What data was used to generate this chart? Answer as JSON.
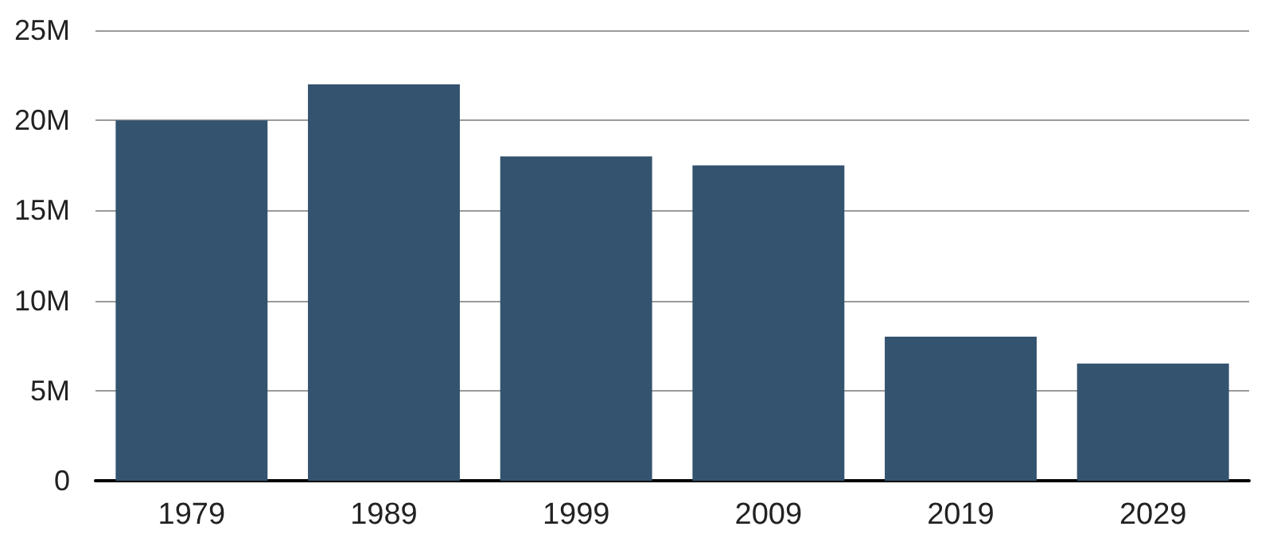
{
  "chart_data": {
    "type": "bar",
    "categories": [
      "1979",
      "1989",
      "1999",
      "2009",
      "2019",
      "2029"
    ],
    "values": [
      20000000,
      22000000,
      18000000,
      17500000,
      8000000,
      6500000
    ],
    "color": "#34536f",
    "ylim": [
      0,
      25000000
    ],
    "yticks": [
      {
        "value": 0,
        "label": "0"
      },
      {
        "value": 5000000,
        "label": "5M"
      },
      {
        "value": 10000000,
        "label": "10M"
      },
      {
        "value": 15000000,
        "label": "15M"
      },
      {
        "value": 20000000,
        "label": "20M"
      },
      {
        "value": 25000000,
        "label": "25M"
      }
    ],
    "grid": "y"
  }
}
